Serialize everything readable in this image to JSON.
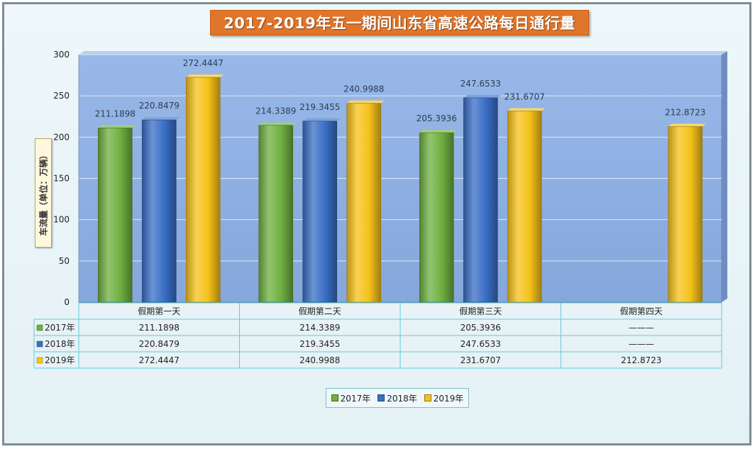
{
  "title": "2017-2019年五一期间山东省高速公路每日通行量",
  "chart_data": {
    "type": "bar",
    "title": "2017-2019年五一期间山东省高速公路每日通行量",
    "ylabel": "车流量（单位：万辆）",
    "xlabel": "",
    "ylim": [
      0,
      300
    ],
    "yticks": [
      0,
      50,
      100,
      150,
      200,
      250,
      300
    ],
    "categories": [
      "假期第一天",
      "假期第二天",
      "假期第三天",
      "假期第四天"
    ],
    "series": [
      {
        "name": "2017年",
        "values": [
          211.1898,
          214.3389,
          205.3936,
          null
        ],
        "color": "#6fb040"
      },
      {
        "name": "2018年",
        "values": [
          220.8479,
          219.3455,
          247.6533,
          null
        ],
        "color": "#3a6fc6"
      },
      {
        "name": "2019年",
        "values": [
          272.4447,
          240.9988,
          231.6707,
          212.8723
        ],
        "color": "#f6c21a"
      }
    ],
    "grid": true,
    "legend": "bottom",
    "data_table": {
      "rows": [
        {
          "name": "2017年",
          "cells": [
            "211.1898",
            "214.3389",
            "205.3936",
            "———"
          ]
        },
        {
          "name": "2018年",
          "cells": [
            "220.8479",
            "219.3455",
            "247.6533",
            "———"
          ]
        },
        {
          "name": "2019年",
          "cells": [
            "272.4447",
            "240.9988",
            "231.6707",
            "212.8723"
          ]
        }
      ]
    },
    "plot_background": "#8db0e6"
  }
}
